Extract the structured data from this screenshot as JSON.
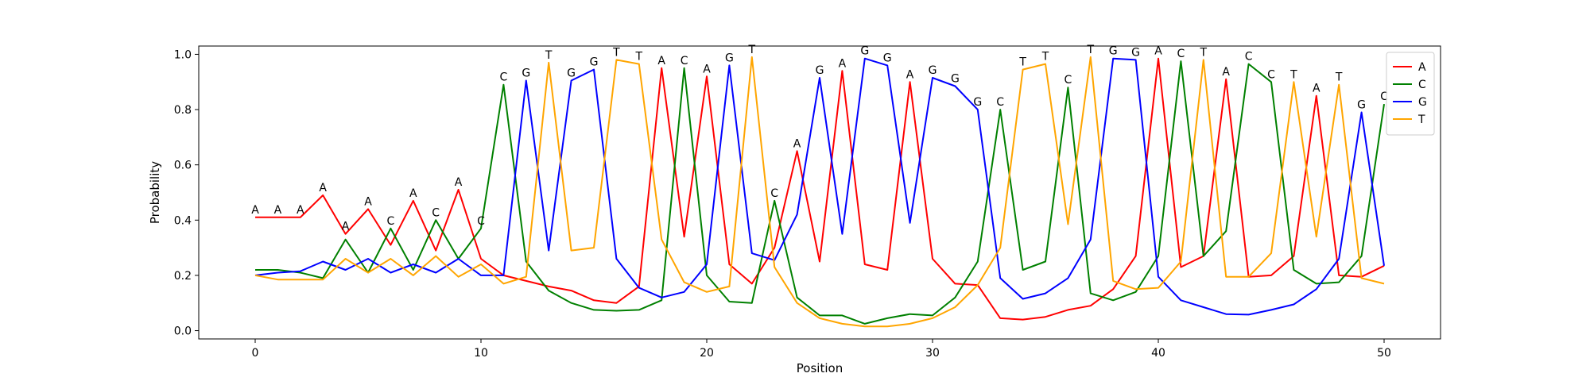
{
  "chart_data": {
    "type": "line",
    "title": "",
    "xlabel": "Position",
    "ylabel": "Probability",
    "xlim": [
      -2.5,
      52.5
    ],
    "ylim": [
      -0.03,
      1.03
    ],
    "xticks": [
      0,
      10,
      20,
      30,
      40,
      50
    ],
    "xtick_labels": [
      "0",
      "10",
      "20",
      "30",
      "40",
      "50"
    ],
    "yticks": [
      0.0,
      0.2,
      0.4,
      0.6,
      0.8,
      1.0
    ],
    "ytick_labels": [
      "0.0",
      "0.2",
      "0.4",
      "0.6",
      "0.8",
      "1.0"
    ],
    "grid": false,
    "legend_position": "top-right",
    "x": [
      0,
      1,
      2,
      3,
      4,
      5,
      6,
      7,
      8,
      9,
      10,
      11,
      12,
      13,
      14,
      15,
      16,
      17,
      18,
      19,
      20,
      21,
      22,
      23,
      24,
      25,
      26,
      27,
      28,
      29,
      30,
      31,
      32,
      33,
      34,
      35,
      36,
      37,
      38,
      39,
      40,
      41,
      42,
      43,
      44,
      45,
      46,
      47,
      48,
      49,
      50
    ],
    "series": [
      {
        "name": "A",
        "color": "#ff0000",
        "values": [
          0.41,
          0.41,
          0.41,
          0.49,
          0.35,
          0.44,
          0.31,
          0.47,
          0.29,
          0.51,
          0.26,
          0.2,
          0.18,
          0.16,
          0.145,
          0.11,
          0.1,
          0.16,
          0.95,
          0.34,
          0.92,
          0.24,
          0.17,
          0.3,
          0.65,
          0.25,
          0.94,
          0.24,
          0.22,
          0.9,
          0.26,
          0.17,
          0.165,
          0.045,
          0.04,
          0.05,
          0.075,
          0.09,
          0.15,
          0.27,
          0.985,
          0.23,
          0.27,
          0.91,
          0.195,
          0.2,
          0.27,
          0.85,
          0.2,
          0.195,
          0.235
        ]
      },
      {
        "name": "C",
        "color": "#008000",
        "values": [
          0.22,
          0.22,
          0.21,
          0.19,
          0.33,
          0.21,
          0.37,
          0.22,
          0.4,
          0.26,
          0.37,
          0.89,
          0.25,
          0.145,
          0.1,
          0.075,
          0.072,
          0.075,
          0.11,
          0.95,
          0.2,
          0.105,
          0.1,
          0.47,
          0.12,
          0.055,
          0.055,
          0.025,
          0.045,
          0.06,
          0.055,
          0.12,
          0.25,
          0.8,
          0.22,
          0.25,
          0.88,
          0.135,
          0.11,
          0.14,
          0.27,
          0.975,
          0.27,
          0.36,
          0.965,
          0.9,
          0.22,
          0.17,
          0.175,
          0.27,
          0.82
        ]
      },
      {
        "name": "G",
        "color": "#0000ff",
        "values": [
          0.2,
          0.21,
          0.215,
          0.25,
          0.22,
          0.26,
          0.21,
          0.24,
          0.21,
          0.26,
          0.2,
          0.2,
          0.905,
          0.29,
          0.905,
          0.945,
          0.26,
          0.155,
          0.12,
          0.14,
          0.24,
          0.96,
          0.28,
          0.255,
          0.42,
          0.915,
          0.35,
          0.985,
          0.96,
          0.39,
          0.915,
          0.885,
          0.8,
          0.19,
          0.115,
          0.135,
          0.19,
          0.33,
          0.985,
          0.98,
          0.195,
          0.11,
          0.085,
          0.06,
          0.058,
          0.075,
          0.095,
          0.15,
          0.26,
          0.79,
          0.235
        ]
      },
      {
        "name": "T",
        "color": "#ffa500",
        "values": [
          0.2,
          0.185,
          0.185,
          0.185,
          0.26,
          0.21,
          0.26,
          0.2,
          0.27,
          0.195,
          0.24,
          0.17,
          0.195,
          0.97,
          0.29,
          0.3,
          0.98,
          0.965,
          0.33,
          0.175,
          0.14,
          0.16,
          0.99,
          0.23,
          0.1,
          0.045,
          0.025,
          0.015,
          0.015,
          0.025,
          0.045,
          0.085,
          0.165,
          0.3,
          0.945,
          0.965,
          0.385,
          0.99,
          0.18,
          0.15,
          0.155,
          0.25,
          0.98,
          0.195,
          0.195,
          0.28,
          0.9,
          0.34,
          0.89,
          0.19,
          0.17
        ]
      }
    ],
    "consensus_labels": [
      "A",
      "A",
      "A",
      "A",
      "A",
      "A",
      "C",
      "A",
      "C",
      "A",
      "C",
      "C",
      "G",
      "T",
      "G",
      "G",
      "T",
      "T",
      "A",
      "C",
      "A",
      "G",
      "T",
      "C",
      "A",
      "G",
      "A",
      "G",
      "G",
      "A",
      "G",
      "G",
      "G",
      "C",
      "T",
      "T",
      "C",
      "T",
      "G",
      "G",
      "A",
      "C",
      "T",
      "A",
      "C",
      "C",
      "T",
      "A",
      "T",
      "G",
      "C"
    ],
    "consensus_values": [
      0.41,
      0.41,
      0.41,
      0.49,
      0.35,
      0.44,
      0.37,
      0.47,
      0.4,
      0.51,
      0.37,
      0.89,
      0.905,
      0.97,
      0.905,
      0.945,
      0.98,
      0.965,
      0.95,
      0.95,
      0.92,
      0.96,
      0.99,
      0.47,
      0.65,
      0.915,
      0.94,
      0.985,
      0.96,
      0.9,
      0.915,
      0.885,
      0.8,
      0.8,
      0.945,
      0.965,
      0.88,
      0.99,
      0.985,
      0.98,
      0.985,
      0.975,
      0.98,
      0.91,
      0.965,
      0.9,
      0.9,
      0.85,
      0.89,
      0.79,
      0.82
    ]
  }
}
